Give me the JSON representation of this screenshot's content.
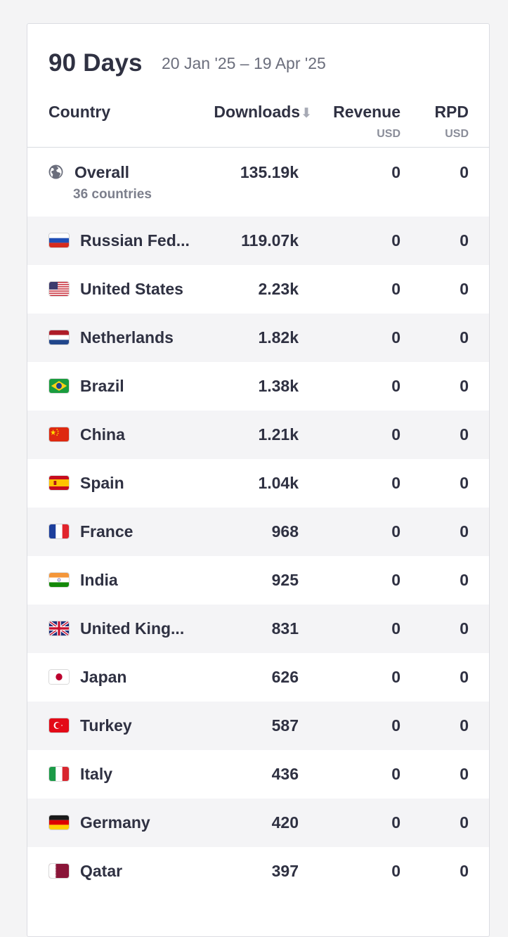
{
  "header": {
    "title": "90 Days",
    "date_range": "20 Jan '25 – 19 Apr '25"
  },
  "columns": {
    "country": "Country",
    "downloads": "Downloads",
    "sort_icon": "arrow-down-icon",
    "sort_glyph": "⬇",
    "revenue": "Revenue",
    "revenue_unit": "USD",
    "rpd": "RPD",
    "rpd_unit": "USD"
  },
  "overall": {
    "icon": "globe-icon",
    "label": "Overall",
    "sublabel": "36 countries",
    "downloads": "135.19k",
    "revenue": "0",
    "rpd": "0"
  },
  "rows": [
    {
      "name": "Russian Fed...",
      "flag": "russia",
      "downloads": "119.07k",
      "revenue": "0",
      "rpd": "0"
    },
    {
      "name": "United States",
      "flag": "usa",
      "downloads": "2.23k",
      "revenue": "0",
      "rpd": "0"
    },
    {
      "name": "Netherlands",
      "flag": "netherlands",
      "downloads": "1.82k",
      "revenue": "0",
      "rpd": "0"
    },
    {
      "name": "Brazil",
      "flag": "brazil",
      "downloads": "1.38k",
      "revenue": "0",
      "rpd": "0"
    },
    {
      "name": "China",
      "flag": "china",
      "downloads": "1.21k",
      "revenue": "0",
      "rpd": "0"
    },
    {
      "name": "Spain",
      "flag": "spain",
      "downloads": "1.04k",
      "revenue": "0",
      "rpd": "0"
    },
    {
      "name": "France",
      "flag": "france",
      "downloads": "968",
      "revenue": "0",
      "rpd": "0"
    },
    {
      "name": "India",
      "flag": "india",
      "downloads": "925",
      "revenue": "0",
      "rpd": "0"
    },
    {
      "name": "United King...",
      "flag": "uk",
      "downloads": "831",
      "revenue": "0",
      "rpd": "0"
    },
    {
      "name": "Japan",
      "flag": "japan",
      "downloads": "626",
      "revenue": "0",
      "rpd": "0"
    },
    {
      "name": "Turkey",
      "flag": "turkey",
      "downloads": "587",
      "revenue": "0",
      "rpd": "0"
    },
    {
      "name": "Italy",
      "flag": "italy",
      "downloads": "436",
      "revenue": "0",
      "rpd": "0"
    },
    {
      "name": "Germany",
      "flag": "germany",
      "downloads": "420",
      "revenue": "0",
      "rpd": "0"
    },
    {
      "name": "Qatar",
      "flag": "qatar",
      "downloads": "397",
      "revenue": "0",
      "rpd": "0"
    }
  ]
}
